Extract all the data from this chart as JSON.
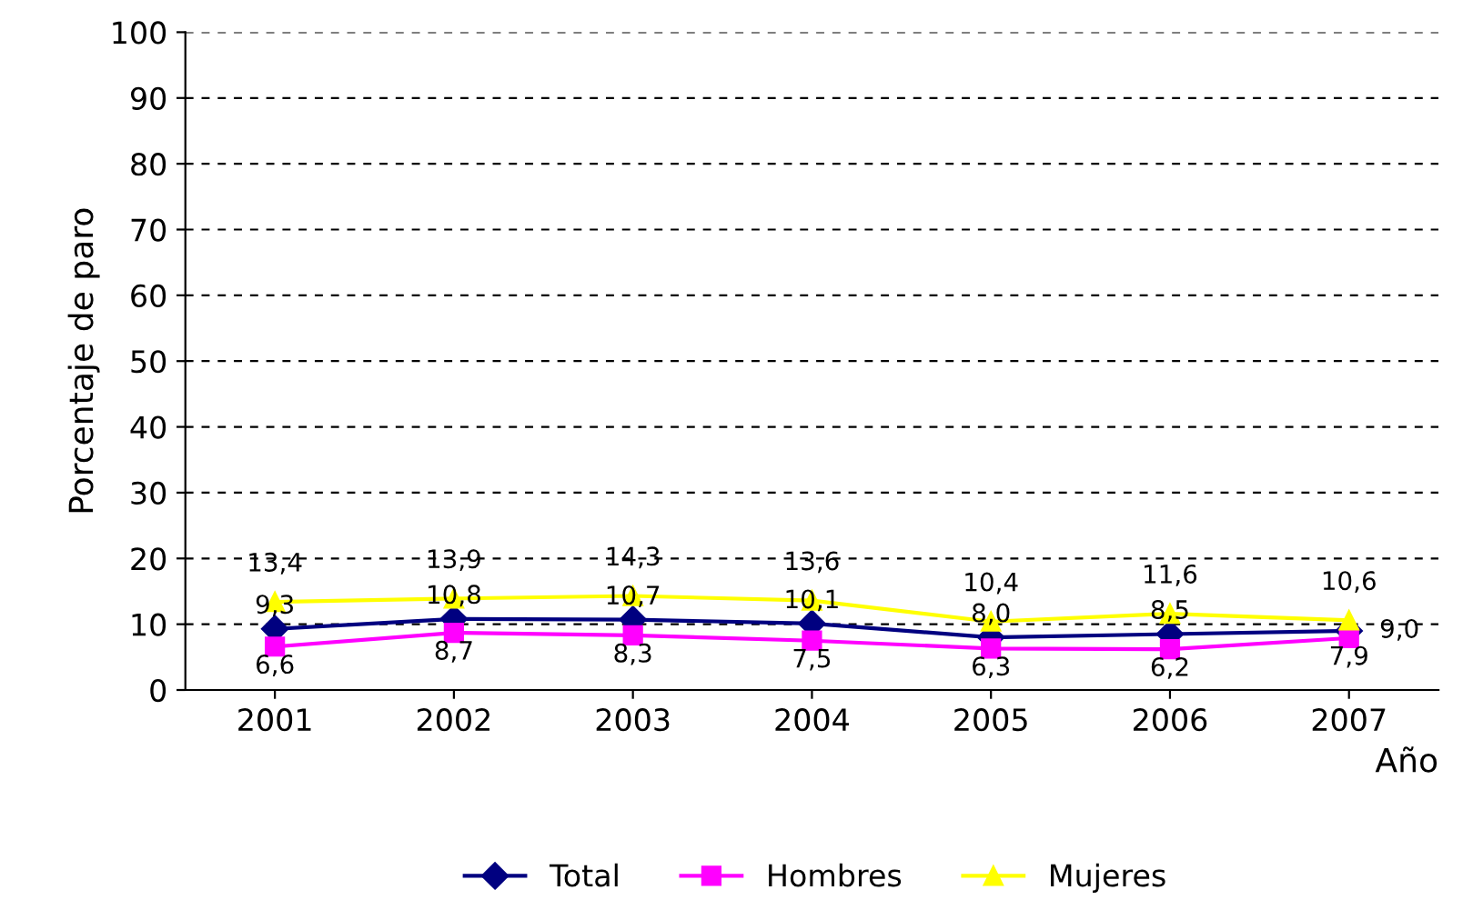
{
  "chart_data": {
    "type": "line",
    "xlabel": "Año",
    "ylabel": "Porcentaje de paro",
    "categories": [
      "2001",
      "2002",
      "2003",
      "2004",
      "2005",
      "2006",
      "2007"
    ],
    "series": [
      {
        "name": "Total",
        "color": "#000080",
        "marker": "diamond",
        "values": [
          9.3,
          10.8,
          10.7,
          10.1,
          8.0,
          8.5,
          9.0
        ],
        "value_labels": [
          "9,3",
          "10,8",
          "10,7",
          "10,1",
          "8,0",
          "8,5",
          "9,0"
        ]
      },
      {
        "name": "Hombres",
        "color": "#ff00ff",
        "marker": "square",
        "values": [
          6.6,
          8.7,
          8.3,
          7.5,
          6.3,
          6.2,
          7.9
        ],
        "value_labels": [
          "6,6",
          "8,7",
          "8,3",
          "7,5",
          "6,3",
          "6,2",
          "7,9"
        ]
      },
      {
        "name": "Mujeres",
        "color": "#ffff00",
        "marker": "triangle",
        "values": [
          13.4,
          13.9,
          14.3,
          13.6,
          10.4,
          11.6,
          10.6
        ],
        "value_labels": [
          "13,4",
          "13,9",
          "14,3",
          "13,6",
          "10,4",
          "11,6",
          "10,6"
        ]
      }
    ],
    "ylim": [
      0,
      100
    ],
    "yticks": [
      0,
      10,
      20,
      30,
      40,
      50,
      60,
      70,
      80,
      90,
      100
    ],
    "grid": "y",
    "legend": "bottom",
    "line_style": "solid"
  }
}
